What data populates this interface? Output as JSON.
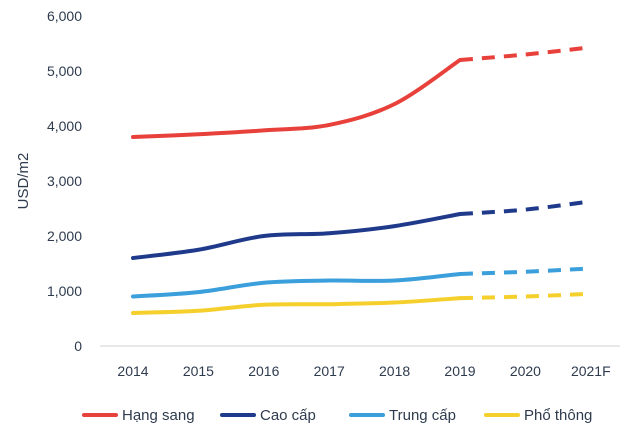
{
  "chart_data": {
    "type": "line",
    "title": "",
    "xlabel": "",
    "ylabel": "USD/m2",
    "categories": [
      "2014",
      "2015",
      "2016",
      "2017",
      "2018",
      "2019",
      "2020",
      "2021F"
    ],
    "ylim": [
      0,
      6000
    ],
    "yticks": [
      "0",
      "1,000",
      "2,000",
      "3,000",
      "4,000",
      "5,000",
      "6,000"
    ],
    "grid": false,
    "legend_position": "bottom",
    "forecast_from": "2019",
    "series": [
      {
        "name": "Hạng sang",
        "color": "#e8403a",
        "values": [
          3800,
          3850,
          3920,
          4020,
          4400,
          5200,
          5300,
          5430
        ]
      },
      {
        "name": "Cao cấp",
        "color": "#1f3a8a",
        "values": [
          1600,
          1750,
          2000,
          2050,
          2180,
          2400,
          2480,
          2630
        ]
      },
      {
        "name": "Trung cấp",
        "color": "#3b9fdc",
        "values": [
          900,
          980,
          1150,
          1190,
          1190,
          1310,
          1350,
          1410
        ]
      },
      {
        "name": "Phổ thông",
        "color": "#f5cf2c",
        "values": [
          600,
          640,
          750,
          760,
          790,
          870,
          900,
          950
        ]
      }
    ]
  }
}
